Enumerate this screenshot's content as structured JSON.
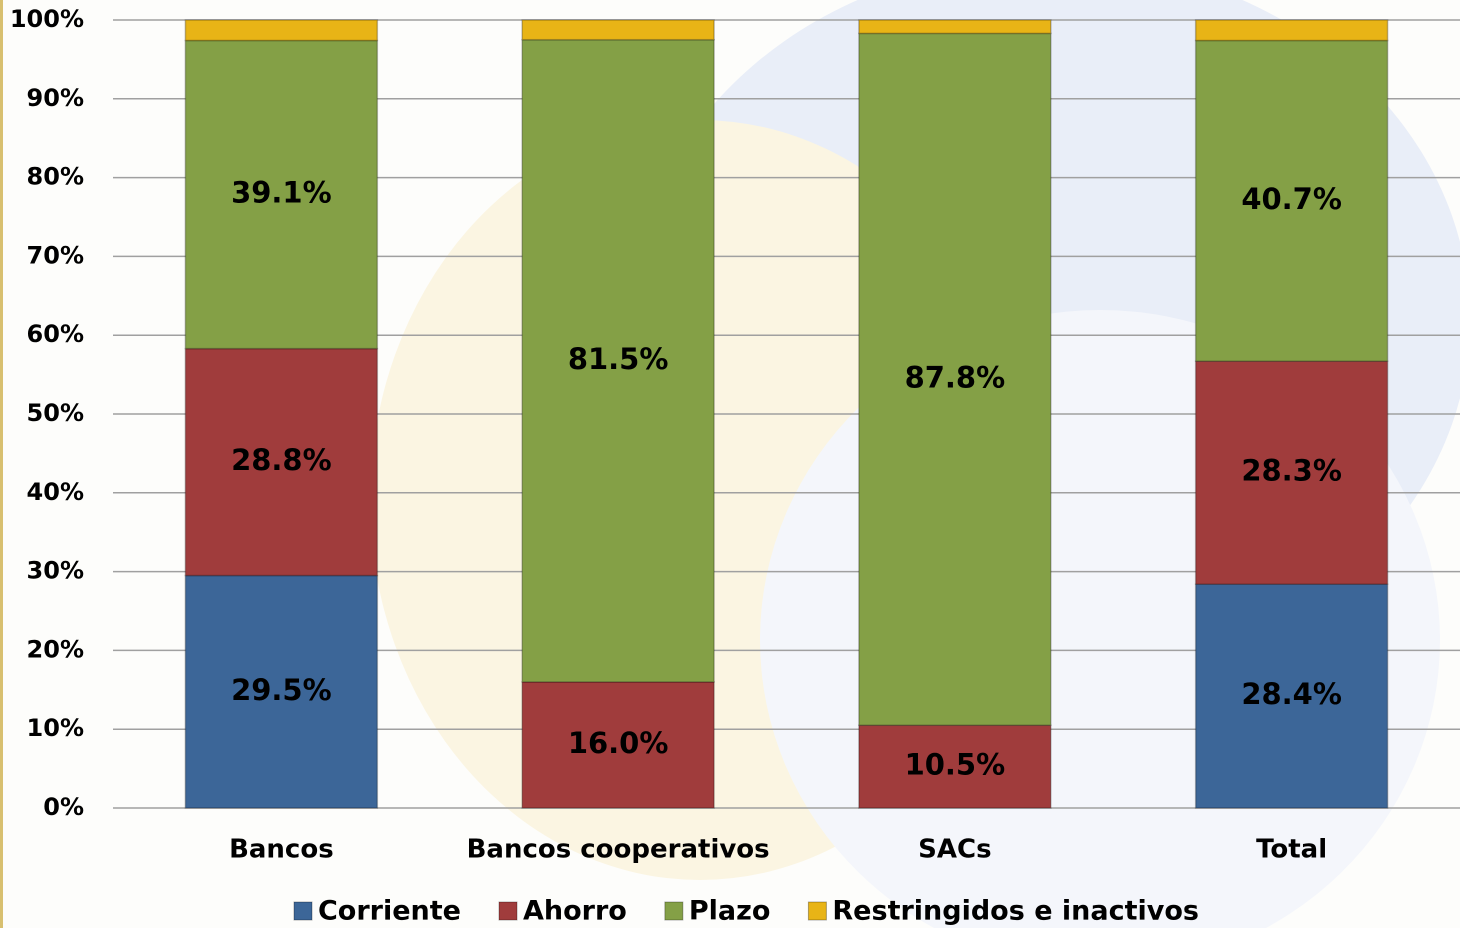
{
  "chart_data": {
    "type": "stacked_bar",
    "categories": [
      "Bancos",
      "Bancos cooperativos",
      "SACs",
      "Total"
    ],
    "series": [
      {
        "name": "Corriente",
        "color": "#3c6698",
        "values": [
          29.5,
          0,
          0,
          28.4
        ],
        "value_labels": [
          "29.5%",
          null,
          null,
          "28.4%"
        ]
      },
      {
        "name": "Ahorro",
        "color": "#a03c3c",
        "values": [
          28.8,
          16.0,
          10.5,
          28.3
        ],
        "value_labels": [
          "28.8%",
          "16.0%",
          "10.5%",
          "28.3%"
        ]
      },
      {
        "name": "Plazo",
        "color": "#84a046",
        "values": [
          39.1,
          81.5,
          87.8,
          40.7
        ],
        "value_labels": [
          "39.1%",
          "81.5%",
          "87.8%",
          "40.7%"
        ]
      },
      {
        "name": "Restringidos e inactivos",
        "color": "#e8b416",
        "values": [
          2.6,
          2.5,
          1.7,
          2.6
        ]
      }
    ],
    "ylim": [
      0,
      100
    ],
    "yticks": [
      {
        "value": 0,
        "label": "0%"
      },
      {
        "value": 10,
        "label": "10%"
      },
      {
        "value": 20,
        "label": "20%"
      },
      {
        "value": 30,
        "label": "30%"
      },
      {
        "value": 40,
        "label": "40%"
      },
      {
        "value": 50,
        "label": "50%"
      },
      {
        "value": 60,
        "label": "60%"
      },
      {
        "value": 70,
        "label": "70%"
      },
      {
        "value": 80,
        "label": "80%"
      },
      {
        "value": 90,
        "label": "90%"
      },
      {
        "value": 100,
        "label": "100%"
      }
    ],
    "grid": true,
    "legend": "bottom"
  }
}
